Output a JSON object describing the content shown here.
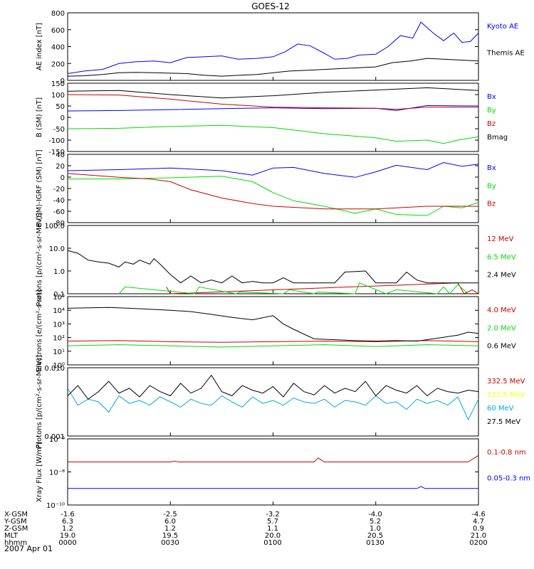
{
  "title": "GOES-12",
  "date_label": "2007 Apr 01",
  "orbit_table": {
    "row_labels": [
      "X-GSM",
      "Y-GSM",
      "Z-GSM",
      "MLT",
      "hhmm"
    ],
    "columns": [
      {
        "values": [
          "-1.6",
          "6.3",
          "1.2",
          "19.0",
          "0000"
        ]
      },
      {
        "values": [
          "-2.5",
          "6.0",
          "1.2",
          "19.5",
          "0030"
        ]
      },
      {
        "values": [
          "-3.2",
          "5.7",
          "1.1",
          "20.0",
          "0100"
        ]
      },
      {
        "values": [
          "-4.0",
          "5.2",
          "1.0",
          "20.5",
          "0130"
        ]
      },
      {
        "values": [
          "-4.6",
          "4.7",
          "0.9",
          "21.0",
          "0200"
        ]
      }
    ]
  },
  "colors": {
    "black": "#000000",
    "blue": "#0000ff",
    "red": "#cc0000",
    "green": "#00dd00",
    "yellow": "#ffff00",
    "cyan": "#00aadd"
  },
  "chart_data": [
    {
      "type": "line",
      "ylabel": "AE index [nT]",
      "ylim": [
        0,
        800
      ],
      "yticks": [
        "800",
        "600",
        "400",
        "200",
        "0"
      ],
      "xlim_hours": [
        0,
        2
      ],
      "series": [
        {
          "name": "Kyoto AE",
          "color": "blue",
          "x": [
            0,
            0.08,
            0.17,
            0.25,
            0.33,
            0.42,
            0.5,
            0.58,
            0.67,
            0.75,
            0.83,
            0.92,
            1.0,
            1.06,
            1.12,
            1.18,
            1.25,
            1.3,
            1.36,
            1.42,
            1.5,
            1.56,
            1.62,
            1.68,
            1.72,
            1.78,
            1.83,
            1.88,
            1.92,
            1.96,
            2.0
          ],
          "y": [
            80,
            110,
            130,
            200,
            220,
            230,
            210,
            270,
            280,
            290,
            250,
            260,
            280,
            340,
            430,
            410,
            320,
            250,
            260,
            300,
            310,
            400,
            530,
            500,
            690,
            560,
            470,
            560,
            450,
            460,
            560
          ]
        },
        {
          "name": "Themis AE",
          "color": "black",
          "x": [
            0,
            0.08,
            0.17,
            0.25,
            0.33,
            0.42,
            0.5,
            0.58,
            0.67,
            0.75,
            0.83,
            0.92,
            1.0,
            1.08,
            1.17,
            1.25,
            1.33,
            1.42,
            1.5,
            1.58,
            1.67,
            1.75,
            1.83,
            1.92,
            2.0
          ],
          "y": [
            50,
            55,
            70,
            90,
            95,
            90,
            85,
            80,
            60,
            50,
            60,
            70,
            90,
            110,
            120,
            130,
            140,
            150,
            160,
            210,
            230,
            260,
            250,
            240,
            230
          ]
        }
      ]
    },
    {
      "type": "line",
      "ylabel": "B (SM) [nT]",
      "ylim": [
        -150,
        150
      ],
      "yticks": [
        "150",
        "100",
        "50",
        "0",
        "-50",
        "-100",
        "-150"
      ],
      "xlim_hours": [
        0,
        2
      ],
      "series": [
        {
          "name": "Bx",
          "color": "blue",
          "x": [
            0,
            0.25,
            0.5,
            0.75,
            1.0,
            1.25,
            1.5,
            1.6,
            1.75,
            2.0
          ],
          "y": [
            28,
            30,
            34,
            38,
            42,
            38,
            40,
            30,
            52,
            50
          ]
        },
        {
          "name": "By",
          "color": "green",
          "x": [
            0,
            0.25,
            0.5,
            0.75,
            1.0,
            1.25,
            1.5,
            1.6,
            1.75,
            1.83,
            1.9,
            2.0
          ],
          "y": [
            -50,
            -48,
            -40,
            -35,
            -45,
            -72,
            -90,
            -105,
            -100,
            -115,
            -100,
            -85
          ]
        },
        {
          "name": "Bz",
          "color": "red",
          "x": [
            0,
            0.25,
            0.5,
            0.75,
            1.0,
            1.25,
            1.5,
            1.6,
            1.75,
            2.0
          ],
          "y": [
            100,
            98,
            80,
            58,
            45,
            42,
            40,
            35,
            45,
            45
          ]
        },
        {
          "name": "Bmag",
          "color": "black",
          "x": [
            0,
            0.25,
            0.5,
            0.75,
            1.0,
            1.25,
            1.5,
            1.75,
            2.0
          ],
          "y": [
            115,
            118,
            100,
            85,
            95,
            110,
            120,
            130,
            118
          ]
        }
      ]
    },
    {
      "type": "line",
      "ylabel": "B (SM)-IGRF (SM) [nT]",
      "ylim": [
        -85,
        40
      ],
      "yticks": [
        "40",
        "20",
        "0",
        "-20",
        "-40",
        "-60",
        "-80"
      ],
      "xlim_hours": [
        0,
        2
      ],
      "series": [
        {
          "name": "Bx",
          "color": "blue",
          "x": [
            0,
            0.25,
            0.5,
            0.75,
            0.9,
            1.0,
            1.1,
            1.25,
            1.4,
            1.5,
            1.6,
            1.75,
            1.83,
            1.92,
            2.0
          ],
          "y": [
            10,
            12,
            15,
            10,
            2,
            15,
            16,
            5,
            -2,
            8,
            20,
            12,
            25,
            18,
            22
          ]
        },
        {
          "name": "By",
          "color": "green",
          "x": [
            0,
            0.25,
            0.5,
            0.75,
            0.9,
            1.0,
            1.1,
            1.25,
            1.4,
            1.5,
            1.6,
            1.75,
            1.83,
            1.92,
            2.0
          ],
          "y": [
            -5,
            -5,
            -3,
            0,
            -10,
            -30,
            -45,
            -55,
            -68,
            -60,
            -70,
            -72,
            -55,
            -58,
            -48
          ]
        },
        {
          "name": "Bz",
          "color": "red",
          "x": [
            0,
            0.25,
            0.4,
            0.5,
            0.6,
            0.75,
            0.9,
            1.0,
            1.25,
            1.5,
            1.75,
            2.0
          ],
          "y": [
            5,
            -2,
            -5,
            -10,
            -25,
            -40,
            -50,
            -55,
            -60,
            -60,
            -55,
            -55
          ]
        }
      ]
    },
    {
      "type": "line",
      "ylabel": "Protons [p/(cm²-s-sr-MeV)]",
      "yscale": "log",
      "ylim": [
        0.1,
        100
      ],
      "yticks": [
        "100.0",
        "10.0",
        "1.0",
        "0.1"
      ],
      "xlim_hours": [
        0,
        2
      ],
      "series": [
        {
          "name": "12 MeV",
          "color": "red",
          "x": [
            0.48,
            0.5,
            1.9,
            1.93,
            1.97,
            2.0
          ],
          "y": [
            0.2,
            0.1,
            0.3,
            0.1,
            0.15,
            0.1
          ]
        },
        {
          "name": "6.5 MeV",
          "color": "green",
          "x": [
            0.25,
            0.28,
            0.62,
            0.64,
            0.82,
            0.84,
            1.05,
            1.08,
            1.2,
            1.22,
            1.4,
            1.42,
            1.55,
            1.6,
            1.8,
            1.83,
            1.86,
            1.9,
            1.95
          ],
          "y": [
            0.1,
            0.2,
            0.1,
            0.2,
            0.1,
            0.12,
            0.1,
            0.15,
            0.1,
            0.12,
            0.1,
            0.3,
            0.1,
            0.15,
            0.1,
            0.2,
            0.1,
            0.25,
            0.1
          ]
        },
        {
          "name": "2.4 MeV",
          "color": "black",
          "x": [
            0,
            0.05,
            0.1,
            0.15,
            0.2,
            0.25,
            0.28,
            0.32,
            0.35,
            0.4,
            0.42,
            0.45,
            0.5,
            0.55,
            0.6,
            0.65,
            0.7,
            0.75,
            0.8,
            0.85,
            0.9,
            0.95,
            1.0,
            1.05,
            1.1,
            1.15,
            1.3,
            1.35,
            1.45,
            1.5,
            1.6,
            1.65,
            1.7,
            1.75,
            1.8,
            1.9,
            1.95,
            2.0
          ],
          "y": [
            8,
            6,
            3,
            2.5,
            2.2,
            1.5,
            2.5,
            2.0,
            3.0,
            2.0,
            3.5,
            2.0,
            0.7,
            0.3,
            0.6,
            0.3,
            0.4,
            0.3,
            0.6,
            0.3,
            0.35,
            0.3,
            0.3,
            0.5,
            0.3,
            0.3,
            0.3,
            0.9,
            1.0,
            0.3,
            0.3,
            0.9,
            0.4,
            0.3,
            0.3,
            0.3,
            0.3,
            0.3
          ]
        }
      ]
    },
    {
      "type": "line",
      "ylabel": "Electrons [e/(cm²-s-sr)]",
      "yscale": "log",
      "ylim": [
        1,
        100000
      ],
      "yticks": [
        "10⁵",
        "10⁴",
        "10³",
        "10²",
        "10¹",
        "10⁰"
      ],
      "xlim_hours": [
        0,
        2
      ],
      "series": [
        {
          "name": "4.0 MeV",
          "color": "red",
          "x": [
            0,
            0.25,
            0.5,
            0.75,
            1.0,
            1.25,
            1.5,
            1.75,
            2.0
          ],
          "y": [
            55,
            60,
            50,
            45,
            50,
            55,
            50,
            60,
            50
          ]
        },
        {
          "name": "2.0 MeV",
          "color": "green",
          "x": [
            0,
            0.25,
            0.5,
            0.75,
            1.0,
            1.25,
            1.5,
            1.75,
            2.0
          ],
          "y": [
            25,
            30,
            25,
            20,
            25,
            30,
            22,
            30,
            25
          ]
        },
        {
          "name": "0.6 MeV",
          "color": "black",
          "x": [
            0,
            0.1,
            0.2,
            0.3,
            0.4,
            0.5,
            0.6,
            0.7,
            0.8,
            0.9,
            1.0,
            1.05,
            1.1,
            1.2,
            1.3,
            1.4,
            1.5,
            1.6,
            1.7,
            1.8,
            1.9,
            1.95,
            2.0
          ],
          "y": [
            14000,
            15000,
            16000,
            14000,
            12000,
            10000,
            8000,
            5000,
            3000,
            2000,
            4000,
            1000,
            400,
            80,
            70,
            60,
            55,
            60,
            55,
            90,
            150,
            250,
            200
          ]
        }
      ]
    },
    {
      "type": "line",
      "ylabel": "Protons [p/(cm²-s-sr-MeV)]",
      "yscale": "log",
      "ylim": [
        0.001,
        0.1
      ],
      "yticks": [
        "0.010",
        "0.001"
      ],
      "xlim_hours": [
        0,
        2
      ],
      "series": [
        {
          "name": "332.5 MeV",
          "color": "red",
          "x": [],
          "y": []
        },
        {
          "name": "122.5 MeV",
          "color": "yellow",
          "x": [],
          "y": []
        },
        {
          "name": "60 MeV",
          "color": "cyan",
          "x": [
            0,
            0.05,
            0.1,
            0.15,
            0.2,
            0.25,
            0.3,
            0.35,
            0.4,
            0.45,
            0.5,
            0.55,
            0.6,
            0.65,
            0.7,
            0.75,
            0.8,
            0.85,
            0.9,
            0.95,
            1.0,
            1.05,
            1.1,
            1.15,
            1.2,
            1.25,
            1.3,
            1.35,
            1.4,
            1.45,
            1.5,
            1.55,
            1.6,
            1.65,
            1.7,
            1.75,
            1.8,
            1.85,
            1.9,
            1.95,
            2.0
          ],
          "y": [
            0.025,
            0.008,
            0.012,
            0.01,
            0.005,
            0.015,
            0.009,
            0.011,
            0.008,
            0.014,
            0.01,
            0.007,
            0.012,
            0.009,
            0.008,
            0.015,
            0.01,
            0.007,
            0.014,
            0.009,
            0.011,
            0.008,
            0.013,
            0.01,
            0.009,
            0.012,
            0.007,
            0.011,
            0.01,
            0.008,
            0.015,
            0.009,
            0.01,
            0.006,
            0.012,
            0.009,
            0.011,
            0.008,
            0.014,
            0.003,
            0.012
          ]
        },
        {
          "name": "27.5 MeV",
          "color": "black",
          "x": [
            0,
            0.05,
            0.1,
            0.15,
            0.2,
            0.25,
            0.3,
            0.35,
            0.4,
            0.45,
            0.5,
            0.55,
            0.6,
            0.65,
            0.7,
            0.75,
            0.8,
            0.85,
            0.9,
            0.95,
            1.0,
            1.05,
            1.1,
            1.15,
            1.2,
            1.25,
            1.3,
            1.35,
            1.4,
            1.45,
            1.5,
            1.55,
            1.6,
            1.65,
            1.7,
            1.75,
            1.8,
            1.85,
            1.9,
            1.95,
            2.0
          ],
          "y": [
            0.015,
            0.03,
            0.012,
            0.02,
            0.04,
            0.018,
            0.025,
            0.014,
            0.03,
            0.02,
            0.015,
            0.035,
            0.018,
            0.025,
            0.06,
            0.02,
            0.015,
            0.03,
            0.022,
            0.018,
            0.028,
            0.014,
            0.035,
            0.02,
            0.016,
            0.03,
            0.018,
            0.025,
            0.02,
            0.04,
            0.015,
            0.03,
            0.022,
            0.018,
            0.03,
            0.015,
            0.025,
            0.02,
            0.018,
            0.022,
            0.02
          ]
        }
      ]
    },
    {
      "type": "line",
      "ylabel": "Xray Flux [W/m²]",
      "yscale": "log",
      "ylim": [
        1e-10,
        1e-06
      ],
      "yticks": [
        "10⁻⁶",
        "10⁻⁸",
        "10⁻¹⁰"
      ],
      "xlim_hours": [
        0,
        2
      ],
      "series": [
        {
          "name": "0.1-0.8 nm",
          "color": "red",
          "x": [
            0,
            0.5,
            0.52,
            0.54,
            1.2,
            1.22,
            1.25,
            1.9,
            1.95,
            2.0
          ],
          "y": [
            4e-08,
            4e-08,
            4.5e-08,
            4e-08,
            4e-08,
            7e-08,
            4e-08,
            4e-08,
            4e-08,
            1e-07
          ]
        },
        {
          "name": "0.05-0.3 nm",
          "color": "blue",
          "x": [
            0,
            0.5,
            1.0,
            1.5,
            1.7,
            1.72,
            1.74,
            2.0
          ],
          "y": [
            1e-09,
            1e-09,
            1e-09,
            1e-09,
            1e-09,
            1.3e-09,
            1e-09,
            1e-09
          ]
        }
      ]
    }
  ]
}
